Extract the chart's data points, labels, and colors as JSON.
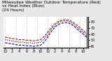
{
  "title": "Milwaukee Weather Outdoor Temperature (Red)\nvs Heat Index (Blue)\n(24 Hours)",
  "bg_color": "#e8e8e8",
  "plot_bg": "#ffffff",
  "red_temp": [
    55,
    54,
    53,
    52,
    51,
    51,
    50,
    50,
    49,
    50,
    51,
    56,
    63,
    71,
    77,
    81,
    83,
    84,
    83,
    80,
    76,
    71,
    66,
    61
  ],
  "blue_heat": [
    46,
    45,
    44,
    43,
    42,
    42,
    41,
    41,
    40,
    41,
    42,
    47,
    55,
    64,
    71,
    76,
    78,
    79,
    78,
    75,
    70,
    65,
    60,
    55
  ],
  "black_line": [
    51,
    50,
    49,
    48,
    47,
    47,
    46,
    46,
    45,
    46,
    47,
    52,
    59,
    68,
    74,
    79,
    81,
    82,
    81,
    78,
    73,
    68,
    63,
    58
  ],
  "ylim": [
    38,
    88
  ],
  "ytick_vals": [
    40,
    50,
    60,
    70,
    80
  ],
  "ytick_labels": [
    "40",
    "50",
    "60",
    "70",
    "80"
  ],
  "hours": 24,
  "grid_color": "#aaaaaa",
  "red_color": "#cc0000",
  "blue_color": "#0000cc",
  "black_color": "#000000",
  "title_fontsize": 4.2,
  "tick_fontsize": 3.5,
  "line_lw": 0.8
}
